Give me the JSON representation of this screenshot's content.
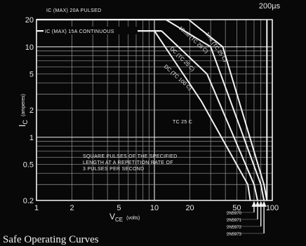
{
  "chart_data": {
    "type": "line",
    "title": "Safe Operating Curves",
    "xlabel": "VCE",
    "xlabel_sub": "CE",
    "xlabel_main": "V",
    "xlabel_unit": "(volts)",
    "ylabel_main": "I",
    "ylabel_sub": "C",
    "ylabel_unit": "(amperes)",
    "x_scale": "log",
    "y_scale": "log",
    "xlim": [
      1,
      100
    ],
    "ylim": [
      0.2,
      20
    ],
    "grid": true,
    "x_ticks": [
      {
        "value": 1,
        "label": "1"
      },
      {
        "value": 2,
        "label": "2"
      },
      {
        "value": 5,
        "label": "5"
      },
      {
        "value": 10,
        "label": "10"
      },
      {
        "value": 20,
        "label": "20"
      },
      {
        "value": 50,
        "label": "50"
      },
      {
        "value": 100,
        "label": "100"
      }
    ],
    "y_ticks": [
      {
        "value": 20,
        "label": "20"
      },
      {
        "value": 10,
        "label": "10"
      },
      {
        "value": 5,
        "label": "5"
      },
      {
        "value": 2,
        "label": "2"
      },
      {
        "value": 1,
        "label": "1"
      },
      {
        "value": 0.5,
        "label": "0.5"
      },
      {
        "value": 0.2,
        "label": "0.2"
      }
    ],
    "top_label": "200µs",
    "pulsed_limit_label": "IC (MAX) 20A PULSED",
    "continuous_limit_label": "IC (MAX) 15A CONTINUOUS",
    "tc_label": "TC 25 C",
    "note_lines": [
      "SQUARE PULSES OF THE SPECIFIED",
      "LENGTH AT A REPETITION RATE OF",
      "3 PULSES PER SECOND"
    ],
    "series": [
      {
        "name": "1ms (TC 25 C)",
        "points": [
          [
            19.5,
            20
          ],
          [
            38,
            10
          ],
          [
            85,
            0.3
          ],
          [
            90,
            0.2
          ]
        ]
      },
      {
        "name": "10ms (TC 25 C)",
        "points": [
          [
            12.5,
            20
          ],
          [
            30,
            10
          ],
          [
            80,
            0.3
          ],
          [
            85,
            0.2
          ]
        ]
      },
      {
        "name": "DC (TC 25 C)",
        "points": [
          [
            11.5,
            15
          ],
          [
            28,
            5
          ],
          [
            70,
            0.3
          ],
          [
            75,
            0.2
          ]
        ]
      },
      {
        "name": "DC (TC 100 C)",
        "points": [
          [
            10,
            15
          ],
          [
            25,
            2.5
          ],
          [
            62,
            0.3
          ],
          [
            65,
            0.2
          ]
        ]
      },
      {
        "name": "",
        "points": [
          [
            90,
            0.2
          ],
          [
            90,
            20
          ]
        ]
      }
    ],
    "device_labels": [
      {
        "label": "2N5970",
        "x": 70
      },
      {
        "label": "2N5971",
        "x": 75
      },
      {
        "label": "2N5972",
        "x": 80
      },
      {
        "label": "2N5973",
        "x": 85
      }
    ]
  }
}
